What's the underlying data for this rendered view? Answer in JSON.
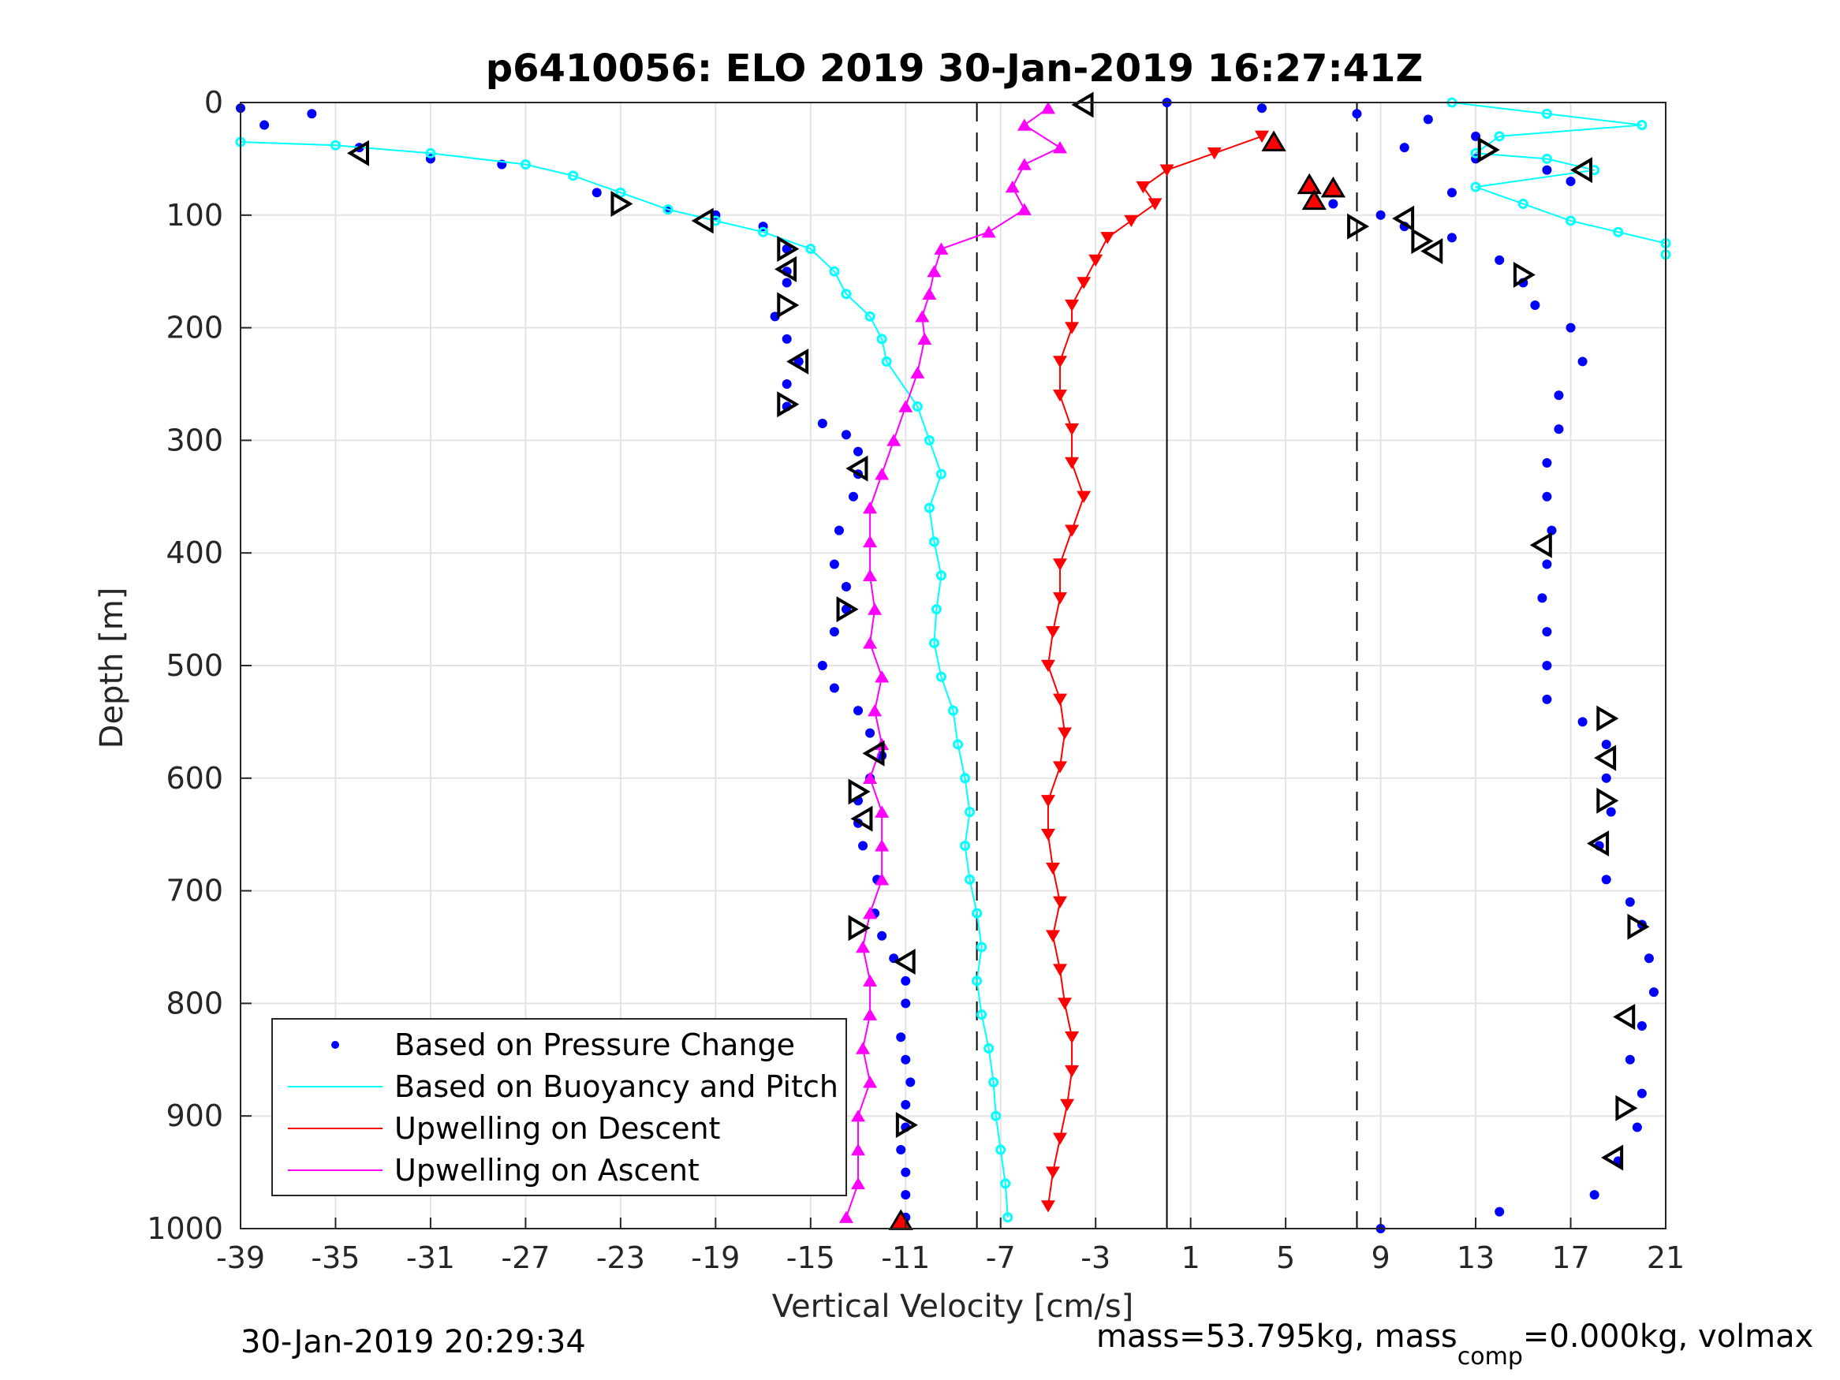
{
  "chart_data": {
    "type": "scatter",
    "title": "p6410056: ELO 2019 30-Jan-2019 16:27:41Z",
    "xlabel": "Vertical Velocity [cm/s]",
    "ylabel": "Depth [m]",
    "xlim": [
      -39,
      21
    ],
    "ylim": [
      0,
      1000
    ],
    "y_reversed": true,
    "grid": true,
    "x_ticks": [
      -39,
      -35,
      -31,
      -27,
      -23,
      -19,
      -15,
      -11,
      -7,
      -3,
      1,
      5,
      9,
      13,
      17,
      21
    ],
    "y_ticks": [
      0,
      100,
      200,
      300,
      400,
      500,
      600,
      700,
      800,
      900,
      1000
    ],
    "reference_lines": {
      "solid": [
        0
      ],
      "dashed": [
        -8,
        8
      ]
    },
    "legend_position": "bottom-left",
    "legend": [
      "Based on Pressure Change",
      "Based on Buoyancy and Pitch",
      "Upwelling on Descent",
      "Upwelling on Ascent"
    ],
    "colors": {
      "pressure": "#0000ff",
      "buoyancy": "#00ffff",
      "descent": "#ff0000",
      "ascent": "#ff00ff"
    },
    "series": [
      {
        "name": "Based on Pressure Change",
        "key": "pressure_ascent",
        "marker": "dot",
        "points": [
          [
            -39,
            5
          ],
          [
            -38,
            20
          ],
          [
            -36,
            10
          ],
          [
            -34,
            40
          ],
          [
            -31,
            50
          ],
          [
            -28,
            55
          ],
          [
            -24,
            80
          ],
          [
            -21,
            95
          ],
          [
            -19,
            100
          ],
          [
            -17,
            110
          ],
          [
            -16,
            130
          ],
          [
            -16,
            150
          ],
          [
            -16,
            160
          ],
          [
            -16.5,
            190
          ],
          [
            -16,
            210
          ],
          [
            -15.5,
            230
          ],
          [
            -16,
            250
          ],
          [
            -16,
            270
          ],
          [
            -14.5,
            285
          ],
          [
            -13.5,
            295
          ],
          [
            -13,
            310
          ],
          [
            -13,
            330
          ],
          [
            -13.2,
            350
          ],
          [
            -13.8,
            380
          ],
          [
            -14,
            410
          ],
          [
            -13.5,
            430
          ],
          [
            -13.5,
            450
          ],
          [
            -14,
            470
          ],
          [
            -14.5,
            500
          ],
          [
            -14,
            520
          ],
          [
            -13,
            540
          ],
          [
            -12.5,
            560
          ],
          [
            -12,
            580
          ],
          [
            -12.5,
            600
          ],
          [
            -13,
            620
          ],
          [
            -13,
            640
          ],
          [
            -12.8,
            660
          ],
          [
            -12.2,
            690
          ],
          [
            -12.3,
            720
          ],
          [
            -12,
            740
          ],
          [
            -11.5,
            760
          ],
          [
            -11,
            780
          ],
          [
            -11,
            800
          ],
          [
            -11.2,
            830
          ],
          [
            -11,
            850
          ],
          [
            -10.8,
            870
          ],
          [
            -11,
            890
          ],
          [
            -11,
            910
          ],
          [
            -11.2,
            930
          ],
          [
            -11,
            950
          ],
          [
            -11,
            970
          ],
          [
            -11,
            990
          ]
        ]
      },
      {
        "name": "Based on Pressure Change",
        "key": "pressure_descent",
        "marker": "dot",
        "points": [
          [
            0,
            0
          ],
          [
            4,
            5
          ],
          [
            8,
            10
          ],
          [
            11,
            15
          ],
          [
            13,
            30
          ],
          [
            10,
            40
          ],
          [
            13,
            50
          ],
          [
            16,
            60
          ],
          [
            17,
            70
          ],
          [
            12,
            80
          ],
          [
            7,
            90
          ],
          [
            9,
            100
          ],
          [
            10,
            110
          ],
          [
            12,
            120
          ],
          [
            14,
            140
          ],
          [
            15,
            160
          ],
          [
            15.5,
            180
          ],
          [
            17,
            200
          ],
          [
            17.5,
            230
          ],
          [
            16.5,
            260
          ],
          [
            16.5,
            290
          ],
          [
            16,
            320
          ],
          [
            16,
            350
          ],
          [
            16.2,
            380
          ],
          [
            16,
            410
          ],
          [
            15.8,
            440
          ],
          [
            16,
            470
          ],
          [
            16,
            500
          ],
          [
            16,
            530
          ],
          [
            17.5,
            550
          ],
          [
            18.5,
            570
          ],
          [
            18.5,
            600
          ],
          [
            18.7,
            630
          ],
          [
            18.2,
            660
          ],
          [
            18.5,
            690
          ],
          [
            19.5,
            710
          ],
          [
            20,
            730
          ],
          [
            20.3,
            760
          ],
          [
            20.5,
            790
          ],
          [
            20,
            820
          ],
          [
            19.5,
            850
          ],
          [
            20,
            880
          ],
          [
            19.8,
            910
          ],
          [
            19,
            940
          ],
          [
            18,
            970
          ],
          [
            14,
            985
          ],
          [
            9,
            1000
          ]
        ]
      },
      {
        "name": "Based on Buoyancy and Pitch",
        "key": "buoyancy_ascent",
        "marker": "circle",
        "points": [
          [
            -39,
            35
          ],
          [
            -35,
            38
          ],
          [
            -31,
            45
          ],
          [
            -27,
            55
          ],
          [
            -25,
            65
          ],
          [
            -23,
            80
          ],
          [
            -21,
            95
          ],
          [
            -19,
            105
          ],
          [
            -17,
            115
          ],
          [
            -15,
            130
          ],
          [
            -14,
            150
          ],
          [
            -13.5,
            170
          ],
          [
            -12.5,
            190
          ],
          [
            -12,
            210
          ],
          [
            -11.8,
            230
          ],
          [
            -10.5,
            270
          ],
          [
            -10,
            300
          ],
          [
            -9.5,
            330
          ],
          [
            -10,
            360
          ],
          [
            -9.8,
            390
          ],
          [
            -9.5,
            420
          ],
          [
            -9.7,
            450
          ],
          [
            -9.8,
            480
          ],
          [
            -9.5,
            510
          ],
          [
            -9,
            540
          ],
          [
            -8.8,
            570
          ],
          [
            -8.5,
            600
          ],
          [
            -8.3,
            630
          ],
          [
            -8.5,
            660
          ],
          [
            -8.3,
            690
          ],
          [
            -8,
            720
          ],
          [
            -7.8,
            750
          ],
          [
            -8,
            780
          ],
          [
            -7.8,
            810
          ],
          [
            -7.5,
            840
          ],
          [
            -7.3,
            870
          ],
          [
            -7.2,
            900
          ],
          [
            -7,
            930
          ],
          [
            -6.8,
            960
          ],
          [
            -6.7,
            990
          ]
        ]
      },
      {
        "name": "Based on Buoyancy and Pitch",
        "key": "buoyancy_descent",
        "marker": "circle",
        "points": [
          [
            12,
            0
          ],
          [
            16,
            10
          ],
          [
            20,
            20
          ],
          [
            14,
            30
          ],
          [
            13,
            45
          ],
          [
            16,
            50
          ],
          [
            18,
            60
          ],
          [
            13,
            75
          ],
          [
            15,
            90
          ],
          [
            17,
            105
          ],
          [
            19,
            115
          ],
          [
            21,
            125
          ],
          [
            21,
            135
          ]
        ]
      },
      {
        "name": "Upwelling on Descent",
        "key": "upwelling_descent",
        "marker": "down-triangle",
        "points": [
          [
            4,
            30
          ],
          [
            2,
            45
          ],
          [
            0,
            60
          ],
          [
            -1,
            75
          ],
          [
            -0.5,
            90
          ],
          [
            -1.5,
            105
          ],
          [
            -2.5,
            120
          ],
          [
            -3,
            140
          ],
          [
            -3.5,
            160
          ],
          [
            -4,
            180
          ],
          [
            -4,
            200
          ],
          [
            -4.5,
            230
          ],
          [
            -4.5,
            260
          ],
          [
            -4,
            290
          ],
          [
            -4,
            320
          ],
          [
            -3.5,
            350
          ],
          [
            -4,
            380
          ],
          [
            -4.5,
            410
          ],
          [
            -4.5,
            440
          ],
          [
            -4.8,
            470
          ],
          [
            -5,
            500
          ],
          [
            -4.5,
            530
          ],
          [
            -4.3,
            560
          ],
          [
            -4.5,
            590
          ],
          [
            -5,
            620
          ],
          [
            -5,
            650
          ],
          [
            -4.8,
            680
          ],
          [
            -4.5,
            710
          ],
          [
            -4.8,
            740
          ],
          [
            -4.5,
            770
          ],
          [
            -4.3,
            800
          ],
          [
            -4,
            830
          ],
          [
            -4,
            860
          ],
          [
            -4.2,
            890
          ],
          [
            -4.5,
            920
          ],
          [
            -4.8,
            950
          ],
          [
            -5,
            980
          ]
        ]
      },
      {
        "name": "Upwelling on Ascent",
        "key": "upwelling_ascent",
        "marker": "up-triangle",
        "points": [
          [
            -5,
            5
          ],
          [
            -6,
            20
          ],
          [
            -4.5,
            40
          ],
          [
            -6,
            55
          ],
          [
            -6.5,
            75
          ],
          [
            -6,
            95
          ],
          [
            -7.5,
            115
          ],
          [
            -9.5,
            130
          ],
          [
            -9.8,
            150
          ],
          [
            -10,
            170
          ],
          [
            -10.3,
            190
          ],
          [
            -10.2,
            210
          ],
          [
            -10.5,
            240
          ],
          [
            -11,
            270
          ],
          [
            -11.5,
            300
          ],
          [
            -12,
            330
          ],
          [
            -12.5,
            360
          ],
          [
            -12.5,
            390
          ],
          [
            -12.5,
            420
          ],
          [
            -12.3,
            450
          ],
          [
            -12.5,
            480
          ],
          [
            -12,
            510
          ],
          [
            -12.3,
            540
          ],
          [
            -12,
            570
          ],
          [
            -12.5,
            600
          ],
          [
            -12,
            630
          ],
          [
            -12,
            660
          ],
          [
            -12,
            690
          ],
          [
            -12.5,
            720
          ],
          [
            -12.8,
            750
          ],
          [
            -12.5,
            780
          ],
          [
            -12.5,
            810
          ],
          [
            -12.8,
            840
          ],
          [
            -12.5,
            870
          ],
          [
            -13,
            900
          ],
          [
            -13,
            930
          ],
          [
            -13,
            960
          ],
          [
            -13.5,
            990
          ]
        ]
      },
      {
        "name": "Pressure change markers",
        "key": "pressure_markers_ascent",
        "marker": "open-triangle",
        "points": [
          [
            -34,
            45
          ],
          [
            -23,
            90
          ],
          [
            -19.5,
            105
          ],
          [
            -16,
            130
          ],
          [
            -16,
            148
          ],
          [
            -16,
            180
          ],
          [
            -15.5,
            230
          ],
          [
            -16,
            268
          ],
          [
            -13,
            325
          ],
          [
            -13.5,
            450
          ],
          [
            -12.3,
            578
          ],
          [
            -13,
            612
          ],
          [
            -12.8,
            636
          ],
          [
            -13,
            733
          ],
          [
            -11,
            763
          ],
          [
            -11,
            908
          ]
        ]
      },
      {
        "name": "Pressure change markers",
        "key": "pressure_markers_descent",
        "marker": "open-triangle",
        "points": [
          [
            -3.5,
            2
          ],
          [
            13.5,
            42
          ],
          [
            17.5,
            60
          ],
          [
            8,
            110
          ],
          [
            10,
            103
          ],
          [
            10.7,
            123
          ],
          [
            11.2,
            132
          ],
          [
            15,
            153
          ],
          [
            15.8,
            393
          ],
          [
            18.5,
            547
          ],
          [
            18.5,
            582
          ],
          [
            18.5,
            620
          ],
          [
            18.2,
            658
          ],
          [
            19.8,
            732
          ],
          [
            19.3,
            812
          ],
          [
            19.3,
            893
          ],
          [
            18.8,
            937
          ]
        ]
      },
      {
        "name": "Upwelling markers",
        "key": "upwelling_markers",
        "marker": "filled-triangle",
        "points": [
          [
            4.5,
            35
          ],
          [
            6,
            73
          ],
          [
            7,
            76
          ],
          [
            6.2,
            87
          ],
          [
            -11.2,
            993
          ]
        ]
      }
    ]
  },
  "footer": {
    "left": "30-Jan-2019 20:29:34",
    "right_prefix": "mass=53.795kg, mass",
    "right_sub": "comp",
    "right_suffix": "=0.000kg, volmax"
  }
}
